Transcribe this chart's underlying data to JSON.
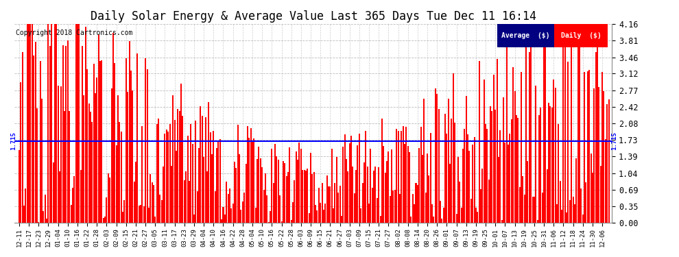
{
  "title": "Daily Solar Energy & Average Value Last 365 Days Tue Dec 11 16:14",
  "title_fontsize": 12,
  "copyright_text": "Copyright 2018 Cartronics.com",
  "average_value": 1.715,
  "bar_color": "#FF0000",
  "average_line_color": "#0000FF",
  "background_color": "#FFFFFF",
  "grid_color": "#AAAAAA",
  "ylim": [
    0.0,
    4.16
  ],
  "yticks": [
    0.0,
    0.35,
    0.69,
    1.04,
    1.39,
    1.73,
    2.08,
    2.42,
    2.77,
    3.12,
    3.46,
    3.81,
    4.16
  ],
  "legend_avg_bg": "#000080",
  "legend_daily_bg": "#FF0000",
  "legend_text_color": "#FFFFFF",
  "x_tick_labels": [
    "12-11",
    "12-17",
    "12-23",
    "12-29",
    "01-04",
    "01-10",
    "01-16",
    "01-22",
    "01-28",
    "02-03",
    "02-09",
    "02-15",
    "02-21",
    "02-27",
    "03-05",
    "03-11",
    "03-17",
    "03-23",
    "03-29",
    "04-04",
    "04-10",
    "04-16",
    "04-22",
    "04-28",
    "05-04",
    "05-10",
    "05-16",
    "05-22",
    "05-28",
    "06-03",
    "06-09",
    "06-15",
    "06-21",
    "06-27",
    "07-03",
    "07-09",
    "07-15",
    "07-21",
    "07-27",
    "08-02",
    "08-08",
    "08-14",
    "08-20",
    "08-26",
    "09-01",
    "09-07",
    "09-13",
    "09-19",
    "09-25",
    "10-01",
    "10-07",
    "10-13",
    "10-19",
    "10-25",
    "10-31",
    "11-06",
    "11-12",
    "11-18",
    "11-24",
    "11-30",
    "12-06"
  ],
  "num_bars": 365,
  "random_seed": 9999
}
